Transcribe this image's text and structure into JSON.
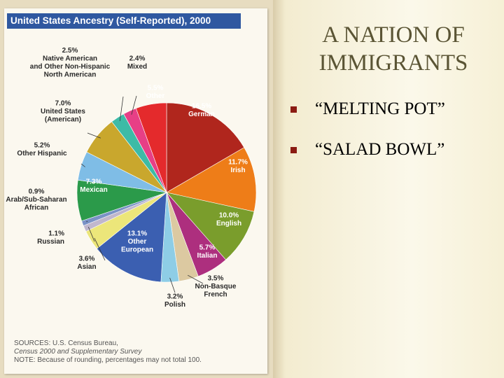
{
  "slide": {
    "title_line1": "A NATION OF",
    "title_line2": "IMMIGRANTS",
    "bullets": [
      "“MELTING POT”",
      "“SALAD BOWL”"
    ]
  },
  "chart_data": {
    "type": "pie",
    "title": "United States Ancestry (Self-Reported), 2000",
    "slices": [
      {
        "pct_label": "16.5%",
        "name": "German",
        "value": 16.5,
        "color": "#b0261d"
      },
      {
        "pct_label": "11.7%",
        "name": "Irish",
        "value": 11.7,
        "color": "#ee7d18"
      },
      {
        "pct_label": "10.0%",
        "name": "English",
        "value": 10.0,
        "color": "#7a9d2c"
      },
      {
        "pct_label": "5.7%",
        "name": "Italian",
        "value": 5.7,
        "color": "#ad2f7e"
      },
      {
        "pct_label": "3.5%",
        "name": "Non-Basque French",
        "value": 3.5,
        "color": "#dcc9a1"
      },
      {
        "pct_label": "3.2%",
        "name": "Polish",
        "value": 3.2,
        "color": "#8ecde6"
      },
      {
        "pct_label": "13.1%",
        "name": "Other European",
        "value": 13.1,
        "color": "#3b5fb1"
      },
      {
        "pct_label": "3.6%",
        "name": "Asian",
        "value": 3.6,
        "color": "#ece67a"
      },
      {
        "pct_label": "1.1%",
        "name": "Russian",
        "value": 1.1,
        "color": "#c0b7cd"
      },
      {
        "pct_label": "0.9%",
        "name": "Arab/Sub-Saharan African",
        "value": 0.9,
        "color": "#7a92c6"
      },
      {
        "pct_label": "7.3%",
        "name": "Mexican",
        "value": 7.3,
        "color": "#2b9a4a"
      },
      {
        "pct_label": "5.2%",
        "name": "Other Hispanic",
        "value": 5.2,
        "color": "#7fbde6"
      },
      {
        "pct_label": "7.0%",
        "name": "United States (American)",
        "value": 7.0,
        "color": "#c9a72d"
      },
      {
        "pct_label": "2.5%",
        "name": "Native American and Other Non-Hispanic North American",
        "value": 2.5,
        "color": "#3dbba6"
      },
      {
        "pct_label": "2.4%",
        "name": "Mixed",
        "value": 2.4,
        "color": "#e73f86"
      },
      {
        "pct_label": "5.5%",
        "name": "Other",
        "value": 5.5,
        "color": "#e42a2c"
      }
    ],
    "sources": [
      "SOURCES: U.S. Census Bureau,",
      "Census 2000 and Supplementary Survey",
      "NOTE: Because of rounding, percentages may not total 100."
    ]
  }
}
